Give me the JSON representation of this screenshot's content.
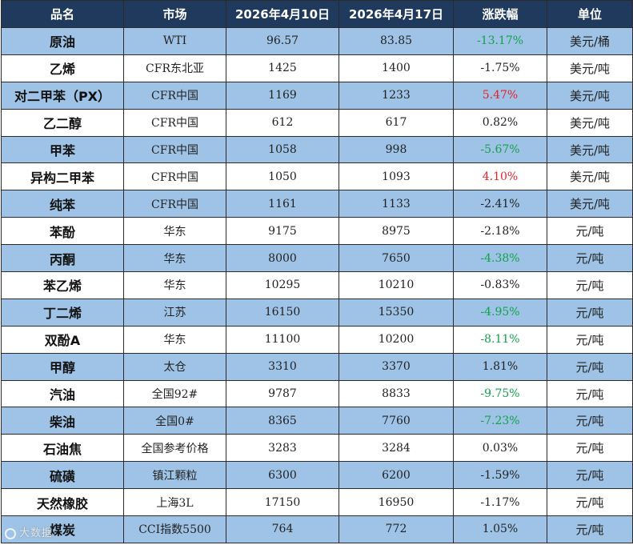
{
  "header": [
    "品名",
    "市场",
    "2026年4月10日",
    "2026年4月17日",
    "涨跌幅",
    "单位"
  ],
  "rows": [
    {
      "name": "原油",
      "market": "WTI",
      "v1": "96.57",
      "v2": "83.85",
      "change": "-13.17%",
      "dir": "down",
      "unit": "美元/桶"
    },
    {
      "name": "乙烯",
      "market": "CFR东北亚",
      "v1": "1425",
      "v2": "1400",
      "change": "-1.75%",
      "dir": "flat",
      "unit": "美元/吨"
    },
    {
      "name": "对二甲苯（PX）",
      "market": "CFR中国",
      "v1": "1169",
      "v2": "1233",
      "change": "5.47%",
      "dir": "up",
      "unit": "美元/吨"
    },
    {
      "name": "乙二醇",
      "market": "CFR中国",
      "v1": "612",
      "v2": "617",
      "change": "0.82%",
      "dir": "flat",
      "unit": "美元/吨"
    },
    {
      "name": "甲苯",
      "market": "CFR中国",
      "v1": "1058",
      "v2": "998",
      "change": "-5.67%",
      "dir": "down",
      "unit": "美元/吨"
    },
    {
      "name": "异构二甲苯",
      "market": "CFR中国",
      "v1": "1050",
      "v2": "1093",
      "change": "4.10%",
      "dir": "up",
      "unit": "美元/吨"
    },
    {
      "name": "纯苯",
      "market": "CFR中国",
      "v1": "1161",
      "v2": "1133",
      "change": "-2.41%",
      "dir": "flat",
      "unit": "美元/吨"
    },
    {
      "name": "苯酚",
      "market": "华东",
      "v1": "9175",
      "v2": "8975",
      "change": "-2.18%",
      "dir": "flat",
      "unit": "元/吨"
    },
    {
      "name": "丙酮",
      "market": "华东",
      "v1": "8000",
      "v2": "7650",
      "change": "-4.38%",
      "dir": "down",
      "unit": "元/吨"
    },
    {
      "name": "苯乙烯",
      "market": "华东",
      "v1": "10295",
      "v2": "10210",
      "change": "-0.83%",
      "dir": "flat",
      "unit": "元/吨"
    },
    {
      "name": "丁二烯",
      "market": "江苏",
      "v1": "16150",
      "v2": "15350",
      "change": "-4.95%",
      "dir": "down",
      "unit": "元/吨"
    },
    {
      "name": "双酚A",
      "market": "华东",
      "v1": "11100",
      "v2": "10200",
      "change": "-8.11%",
      "dir": "down",
      "unit": "元/吨"
    },
    {
      "name": "甲醇",
      "market": "太仓",
      "v1": "3310",
      "v2": "3370",
      "change": "1.81%",
      "dir": "flat",
      "unit": "元/吨"
    },
    {
      "name": "汽油",
      "market": "全国92#",
      "v1": "9787",
      "v2": "8833",
      "change": "-9.75%",
      "dir": "down",
      "unit": "元/吨"
    },
    {
      "name": "柴油",
      "market": "全国0#",
      "v1": "8365",
      "v2": "7760",
      "change": "-7.23%",
      "dir": "down",
      "unit": "元/吨"
    },
    {
      "name": "石油焦",
      "market": "全国参考价格",
      "v1": "3283",
      "v2": "3284",
      "change": "0.03%",
      "dir": "flat",
      "unit": "元/吨"
    },
    {
      "name": "硫磺",
      "market": "镇江颗粒",
      "v1": "6300",
      "v2": "6200",
      "change": "-1.59%",
      "dir": "flat",
      "unit": "元/吨"
    },
    {
      "name": "天然橡胶",
      "market": "上海3L",
      "v1": "17150",
      "v2": "16950",
      "change": "-1.17%",
      "dir": "flat",
      "unit": "元/吨"
    },
    {
      "name": "煤炭",
      "market": "CCI指数5500",
      "v1": "764",
      "v2": "772",
      "change": "1.05%",
      "dir": "flat",
      "unit": "元/吨"
    }
  ],
  "watermark": "大数据",
  "colors": {
    "header_bg": "#1f3a5c",
    "band": "#9ec3e6",
    "up": "#e8202a",
    "down": "#13a14a"
  }
}
